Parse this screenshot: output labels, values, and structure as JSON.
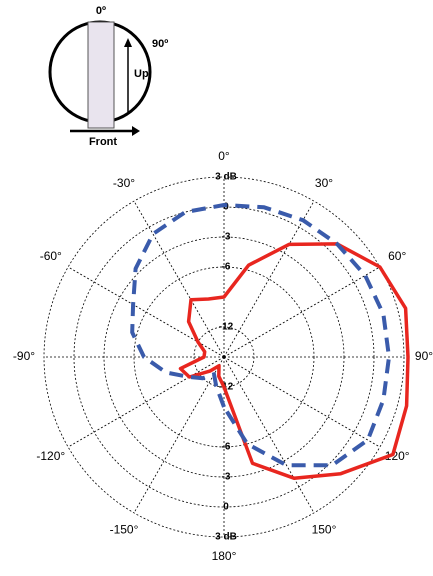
{
  "chart_data": {
    "type": "polar-line",
    "annotations": [
      "0º",
      "Up",
      "90º",
      "Front"
    ],
    "theta": [
      -180,
      -165,
      -150,
      -135,
      -120,
      -105,
      -90,
      -75,
      -60,
      -45,
      -30,
      -15,
      0,
      15,
      30,
      45,
      60,
      75,
      90,
      105,
      120,
      135,
      150,
      165,
      180
    ],
    "series": [
      {
        "color": "#e8261f",
        "dashed": false,
        "values": [
          -12,
          -13,
          -14,
          -13,
          -11,
          -10.5,
          -13,
          -13,
          -12,
          -10,
          -8.4,
          -9,
          -9,
          -5.5,
          -2,
          1,
          3,
          3.8,
          3.4,
          3.9,
          4.5,
          1.5,
          -1,
          -4,
          -12
        ]
      },
      {
        "color": "#3a5bab",
        "dashed": true,
        "values": [
          -10,
          -12,
          -13,
          -12,
          -11,
          -9,
          -7,
          -5.5,
          -4.5,
          -2.5,
          -0.8,
          0,
          0.2,
          0.5,
          0.8,
          1,
          1.3,
          1.5,
          1.5,
          1.5,
          1.6,
          0.3,
          -2.5,
          -6,
          -10
        ]
      }
    ],
    "rlim": [
      -15,
      3
    ],
    "rticks": [
      {
        "value": 3,
        "label": "3 dB"
      },
      0,
      -3,
      -6,
      -12
    ],
    "thetaticks": [
      {
        "value": 0,
        "label": "0°"
      },
      {
        "value": 30,
        "label": "30°"
      },
      {
        "value": 60,
        "label": "60°"
      },
      {
        "value": 90,
        "label": "90°"
      },
      {
        "value": 120,
        "label": "120°"
      },
      {
        "value": 150,
        "label": "150°"
      },
      {
        "value": 180,
        "label": "180°"
      },
      {
        "value": -150,
        "label": "-150°"
      },
      {
        "value": -120,
        "label": "-120°"
      },
      {
        "value": -90,
        "label": "-90°"
      },
      {
        "value": -60,
        "label": "-60°"
      },
      {
        "value": -30,
        "label": "-30°"
      }
    ],
    "grid": true
  }
}
